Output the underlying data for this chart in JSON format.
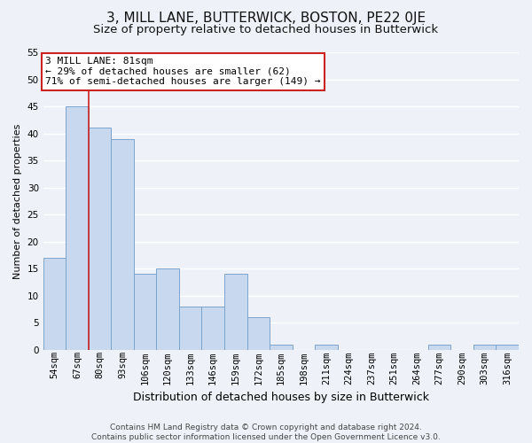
{
  "title": "3, MILL LANE, BUTTERWICK, BOSTON, PE22 0JE",
  "subtitle": "Size of property relative to detached houses in Butterwick",
  "xlabel": "Distribution of detached houses by size in Butterwick",
  "ylabel": "Number of detached properties",
  "bar_labels": [
    "54sqm",
    "67sqm",
    "80sqm",
    "93sqm",
    "106sqm",
    "120sqm",
    "133sqm",
    "146sqm",
    "159sqm",
    "172sqm",
    "185sqm",
    "198sqm",
    "211sqm",
    "224sqm",
    "237sqm",
    "251sqm",
    "264sqm",
    "277sqm",
    "290sqm",
    "303sqm",
    "316sqm"
  ],
  "bar_values": [
    17,
    45,
    41,
    39,
    14,
    15,
    8,
    8,
    14,
    6,
    1,
    0,
    1,
    0,
    0,
    0,
    0,
    1,
    0,
    1,
    1
  ],
  "bar_color": "#c8d8ee",
  "bar_edge_color": "#7ba3cc",
  "highlight_label": "3 MILL LANE: 81sqm",
  "annotation_line1": "← 29% of detached houses are smaller (62)",
  "annotation_line2": "71% of semi-detached houses are larger (149) →",
  "annotation_box_color": "#ffffff",
  "annotation_box_edge_color": "#cc2222",
  "highlight_line_color": "#cc2222",
  "ylim": [
    0,
    55
  ],
  "yticks": [
    0,
    5,
    10,
    15,
    20,
    25,
    30,
    35,
    40,
    45,
    50,
    55
  ],
  "footer_line1": "Contains HM Land Registry data © Crown copyright and database right 2024.",
  "footer_line2": "Contains public sector information licensed under the Open Government Licence v3.0.",
  "background_color": "#eef2f8",
  "grid_color": "#ffffff",
  "title_fontsize": 11,
  "subtitle_fontsize": 9.5,
  "xlabel_fontsize": 9,
  "ylabel_fontsize": 8,
  "tick_fontsize": 7.5,
  "annotation_fontsize": 8,
  "footer_fontsize": 6.5
}
